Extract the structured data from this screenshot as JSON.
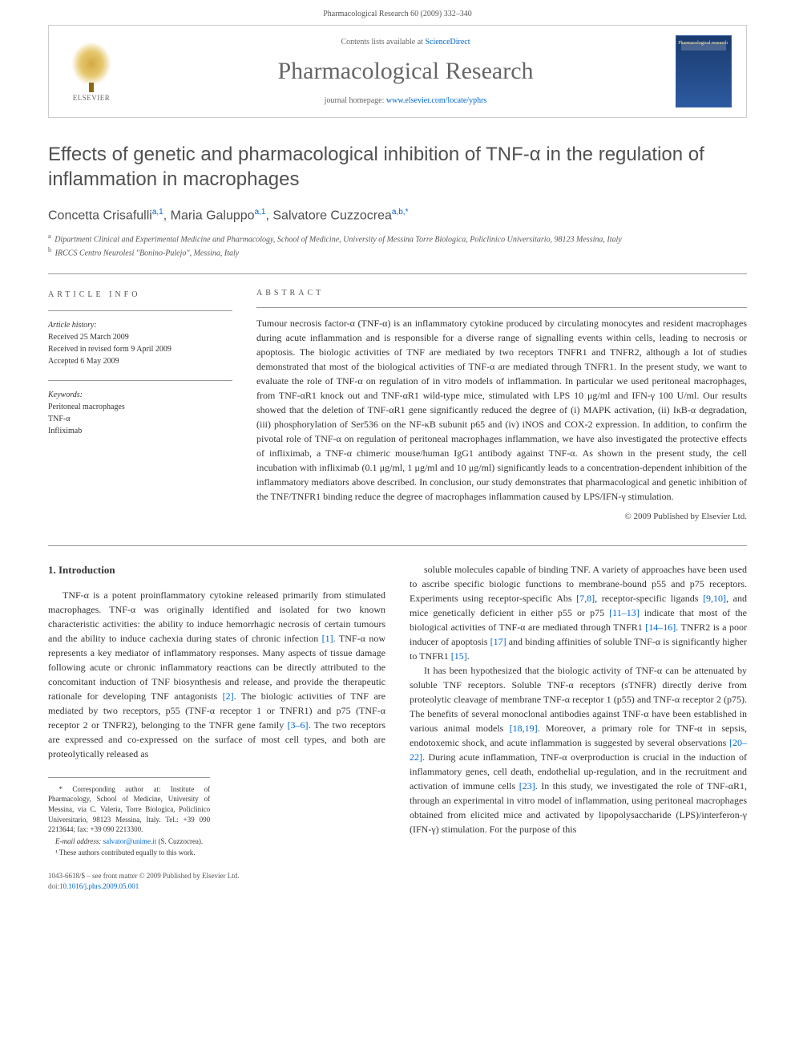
{
  "page_header": "Pharmacological Research 60 (2009) 332–340",
  "banner": {
    "elsevier_label": "ELSEVIER",
    "contents_prefix": "Contents lists available at ",
    "contents_link": "ScienceDirect",
    "journal_name": "Pharmacological Research",
    "homepage_prefix": "journal homepage: ",
    "homepage_link": "www.elsevier.com/locate/yphrs",
    "cover_text": "Pharmacological research"
  },
  "title": "Effects of genetic and pharmacological inhibition of TNF-α in the regulation of inflammation in macrophages",
  "authors_html": "Concetta Crisafulli<sup>a,1</sup>, Maria Galuppo<sup>a,1</sup>, Salvatore Cuzzocrea<sup>a,b,*</sup>",
  "affiliations": {
    "a": "Dipartment Clinical and Experimental Medicine and Pharmacology, School of Medicine, University of Messina Torre Biologica, Policlinico Universitario, 98123 Messina, Italy",
    "b": "IRCCS Centro Neurolesi \"Bonino-Pulejo\", Messina, Italy"
  },
  "info": {
    "heading": "ARTICLE INFO",
    "history_label": "Article history:",
    "history": [
      "Received 25 March 2009",
      "Received in revised form 9 April 2009",
      "Accepted 6 May 2009"
    ],
    "keywords_label": "Keywords:",
    "keywords": [
      "Peritoneal macrophages",
      "TNF-α",
      "Infliximab"
    ]
  },
  "abstract": {
    "heading": "ABSTRACT",
    "text": "Tumour necrosis factor-α (TNF-α) is an inflammatory cytokine produced by circulating monocytes and resident macrophages during acute inflammation and is responsible for a diverse range of signalling events within cells, leading to necrosis or apoptosis. The biologic activities of TNF are mediated by two receptors TNFR1 and TNFR2, although a lot of studies demonstrated that most of the biological activities of TNF-α are mediated through TNFR1. In the present study, we want to evaluate the role of TNF-α on regulation of in vitro models of inflammation. In particular we used peritoneal macrophages, from TNF-αR1 knock out and TNF-αR1 wild-type mice, stimulated with LPS 10 μg/ml and IFN-γ 100 U/ml. Our results showed that the deletion of TNF-αR1 gene significantly reduced the degree of (i) MAPK activation, (ii) IκB-α degradation, (iii) phosphorylation of Ser536 on the NF-κB subunit p65 and (iv) iNOS and COX-2 expression. In addition, to confirm the pivotal role of TNF-α on regulation of peritoneal macrophages inflammation, we have also investigated the protective effects of infliximab, a TNF-α chimeric mouse/human IgG1 antibody against TNF-α. As shown in the present study, the cell incubation with infliximab (0.1 μg/ml, 1 μg/ml and 10 μg/ml) significantly leads to a concentration-dependent inhibition of the inflammatory mediators above described. In conclusion, our study demonstrates that pharmacological and genetic inhibition of the TNF/TNFR1 binding reduce the degree of macrophages inflammation caused by LPS/IFN-γ stimulation.",
    "copyright": "© 2009 Published by Elsevier Ltd."
  },
  "intro": {
    "heading": "1. Introduction",
    "col1_p1": "TNF-α is a potent proinflammatory cytokine released primarily from stimulated macrophages. TNF-α was originally identified and isolated for two known characteristic activities: the ability to induce hemorrhagic necrosis of certain tumours and the ability to induce cachexia during states of chronic infection [1]. TNF-α now represents a key mediator of inflammatory responses. Many aspects of tissue damage following acute or chronic inflammatory reactions can be directly attributed to the concomitant induction of TNF biosynthesis and release, and provide the therapeutic rationale for developing TNF antagonists [2]. The biologic activities of TNF are mediated by two receptors, p55 (TNF-α receptor 1 or TNFR1) and p75 (TNF-α receptor 2 or TNFR2), belonging to the TNFR gene family [3–6]. The two receptors are expressed and co-expressed on the surface of most cell types, and both are proteolytically released as",
    "col2_p1": "soluble molecules capable of binding TNF. A variety of approaches have been used to ascribe specific biologic functions to membrane-bound p55 and p75 receptors. Experiments using receptor-specific Abs [7,8], receptor-specific ligands [9,10], and mice genetically deficient in either p55 or p75 [11–13] indicate that most of the biological activities of TNF-α are mediated through TNFR1 [14–16]. TNFR2 is a poor inducer of apoptosis [17] and binding affinities of soluble TNF-α is significantly higher to TNFR1 [15].",
    "col2_p2": "It has been hypothesized that the biologic activity of TNF-α can be attenuated by soluble TNF receptors. Soluble TNF-α receptors (sTNFR) directly derive from proteolytic cleavage of membrane TNF-α receptor 1 (p55) and TNF-α receptor 2 (p75). The benefits of several monoclonal antibodies against TNF-α have been established in various animal models [18,19]. Moreover, a primary role for TNF-α in sepsis, endotoxemic shock, and acute inflammation is suggested by several observations [20–22]. During acute inflammation, TNF-α overproduction is crucial in the induction of inflammatory genes, cell death, endothelial up-regulation, and in the recruitment and activation of immune cells [23]. In this study, we investigated the role of TNF-αR1, through an experimental in vitro model of inflammation, using peritoneal macrophages obtained from elicited mice and activated by lipopolysaccharide (LPS)/interferon-γ (IFN-γ) stimulation. For the purpose of this"
  },
  "footnotes": {
    "corresponding": "* Corresponding author at: Institute of Pharmacology, School of Medicine, University of Messina, via C. Valeria, Torre Biologica, Policlinico Universitario, 98123 Messina, Italy. Tel.: +39 090 2213644; fax: +39 090 2213300.",
    "email_label": "E-mail address: ",
    "email": "salvator@unime.it",
    "email_suffix": " (S. Cuzzocrea).",
    "equal": "¹ These authors contributed equally to this work."
  },
  "footer": {
    "line1": "1043-6618/$ – see front matter © 2009 Published by Elsevier Ltd.",
    "doi_prefix": "doi:",
    "doi": "10.1016/j.phrs.2009.05.001"
  },
  "colors": {
    "link": "#0066cc",
    "text": "#333333",
    "heading_gray": "#505050",
    "rule": "#999999",
    "cover_blue": "#2d5aa0"
  }
}
